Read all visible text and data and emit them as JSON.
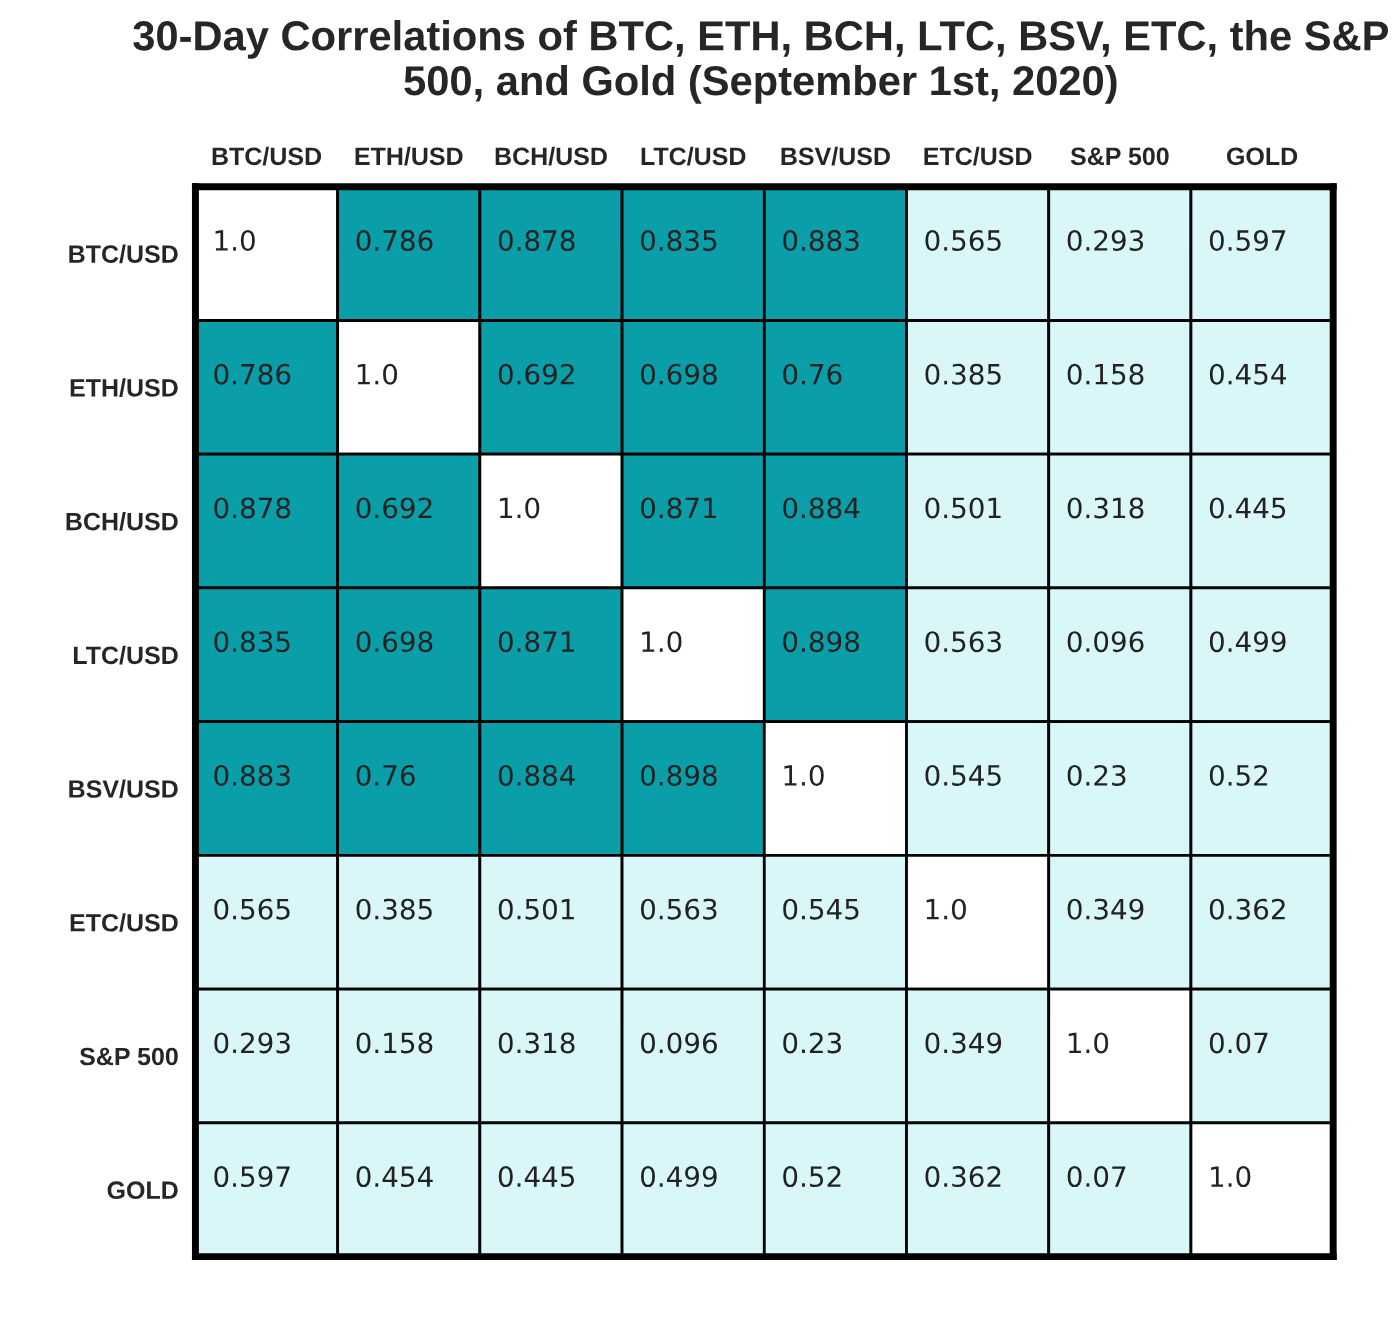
{
  "chart_data": {
    "type": "heatmap",
    "title": "30-Day Correlations of BTC, ETH, BCH, LTC, BSV, ETC, the S&P 500, and Gold (September 1st, 2020)",
    "categories": [
      "BTC/USD",
      "ETH/USD",
      "BCH/USD",
      "LTC/USD",
      "BSV/USD",
      "ETC/USD",
      "S&P 500",
      "GOLD"
    ],
    "y_categories": [
      "BTC/USD",
      "ETH/USD",
      "BCH/USD",
      "LTC/USD",
      "BSV/USD",
      "ETC/USD",
      "S&P 500",
      "GOLD"
    ],
    "cell_labels": [
      [
        "1.0",
        "0.786",
        "0.878",
        "0.835",
        "0.883",
        "0.565",
        "0.293",
        "0.597"
      ],
      [
        "0.786",
        "1.0",
        "0.692",
        "0.698",
        "0.76",
        "0.385",
        "0.158",
        "0.454"
      ],
      [
        "0.878",
        "0.692",
        "1.0",
        "0.871",
        "0.884",
        "0.501",
        "0.318",
        "0.445"
      ],
      [
        "0.835",
        "0.698",
        "0.871",
        "1.0",
        "0.898",
        "0.563",
        "0.096",
        "0.499"
      ],
      [
        "0.883",
        "0.76",
        "0.884",
        "0.898",
        "1.0",
        "0.545",
        "0.23",
        "0.52"
      ],
      [
        "0.565",
        "0.385",
        "0.501",
        "0.563",
        "0.545",
        "1.0",
        "0.349",
        "0.362"
      ],
      [
        "0.293",
        "0.158",
        "0.318",
        "0.096",
        "0.23",
        "0.349",
        "1.0",
        "0.07"
      ],
      [
        "0.597",
        "0.454",
        "0.445",
        "0.499",
        "0.52",
        "0.362",
        "0.07",
        "1.0"
      ]
    ],
    "cells": [
      [
        1.0,
        0.786,
        0.878,
        0.835,
        0.883,
        0.565,
        0.293,
        0.597
      ],
      [
        0.786,
        1.0,
        0.692,
        0.698,
        0.76,
        0.385,
        0.158,
        0.454
      ],
      [
        0.878,
        0.692,
        1.0,
        0.871,
        0.884,
        0.501,
        0.318,
        0.445
      ],
      [
        0.835,
        0.698,
        0.871,
        1.0,
        0.898,
        0.563,
        0.096,
        0.499
      ],
      [
        0.883,
        0.76,
        0.884,
        0.898,
        1.0,
        0.545,
        0.23,
        0.52
      ],
      [
        0.565,
        0.385,
        0.501,
        0.563,
        0.545,
        1.0,
        0.349,
        0.362
      ],
      [
        0.293,
        0.158,
        0.318,
        0.096,
        0.23,
        0.349,
        1.0,
        0.07
      ],
      [
        0.597,
        0.454,
        0.445,
        0.499,
        0.52,
        0.362,
        0.07,
        1.0
      ]
    ],
    "colors": [
      "#d9f7f8",
      "#d9f7f8",
      "#d9f7f8",
      "#d9f7f8",
      "#d9f7f8",
      "#d9f7f8",
      "#d9f7f8",
      "#0a9ea8",
      "#0a9ea8",
      "#0a9ea8",
      "#ffffff"
    ]
  }
}
